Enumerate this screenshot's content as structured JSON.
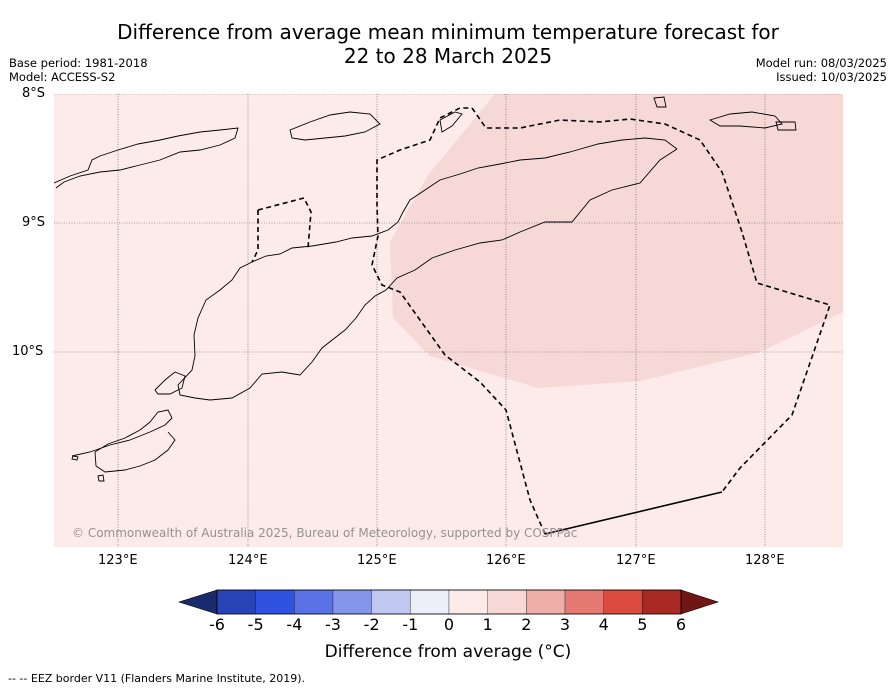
{
  "title": {
    "line1": "Difference from average mean minimum temperature forecast for",
    "line2": "22 to 28 March 2025"
  },
  "meta_left": {
    "base_period": "Base period: 1981-2018",
    "model": "Model: ACCESS-S2"
  },
  "meta_right": {
    "model_run": "Model run: 08/03/2025",
    "issued": "Issued: 10/03/2025"
  },
  "map": {
    "lat_labels": [
      "8°S",
      "9°S",
      "10°S"
    ],
    "lon_labels": [
      "123°E",
      "124°E",
      "125°E",
      "126°E",
      "127°E",
      "128°E"
    ],
    "copyright": "© Commonwealth of Australia 2025, Bureau of Meteorology, supported by COSPPac",
    "colors": {
      "background_anomaly": "#fcebe9",
      "warm_anomaly": "#f6d8d6",
      "coastline": "#000000",
      "gridline": "#555555",
      "eez_border": "#000000"
    },
    "regions": [
      {
        "name": "background",
        "anomaly_range": "0 to 1"
      },
      {
        "name": "warm patch",
        "anomaly_range": "1 to 2"
      }
    ]
  },
  "colorbar": {
    "label": "Difference from average (°C)",
    "ticks": [
      "-6",
      "-5",
      "-4",
      "-3",
      "-2",
      "-1",
      "0",
      "1",
      "2",
      "3",
      "4",
      "5",
      "6"
    ],
    "colors": [
      "#1a2a6e",
      "#2743b5",
      "#2f52e0",
      "#5b72e6",
      "#8596ea",
      "#c0c8f2",
      "#eceffa",
      "#fcebe9",
      "#f6d8d6",
      "#f0aea9",
      "#e67a72",
      "#db4a3f",
      "#a92a22",
      "#6e1714"
    ],
    "extend": "both"
  },
  "footnote": "-- -- EEZ border V11 (Flanders Marine Institute, 2019)."
}
